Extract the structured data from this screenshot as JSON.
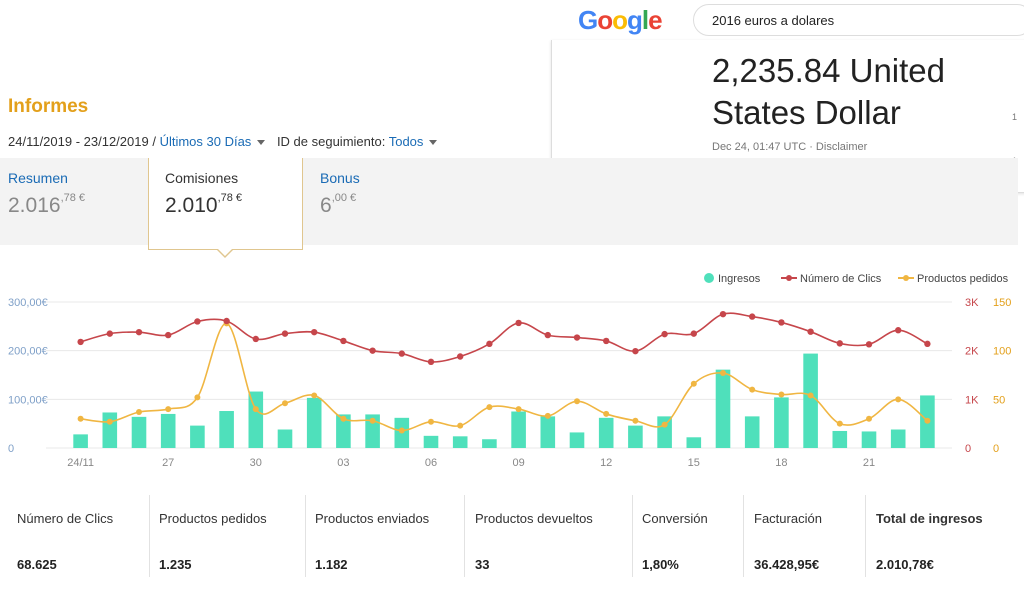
{
  "google": {
    "logo": "Google",
    "query": "2016 euros a dolares",
    "result_line1": "2,235.84 United",
    "result_line2": "States Dollar",
    "date": "Dec 24, 01:47 UTC · Disclaimer",
    "side_digit_1": "1",
    "side_digit_2": "1"
  },
  "report": {
    "title": "Informes",
    "date_range": "24/11/2019 - 23/12/2019 / ",
    "period_link": "Últimos 30 Días",
    "tracking_label": "ID de seguimiento: ",
    "tracking_value": "Todos"
  },
  "tabs": [
    {
      "label": "Resumen",
      "value_int": "2.016",
      "value_dec": ",78 €"
    },
    {
      "label": "Comisiones",
      "value_int": "2.010",
      "value_dec": ",78 €"
    },
    {
      "label": "Bonus",
      "value_int": "6",
      "value_dec": ",00 €"
    }
  ],
  "colors": {
    "ingresos": "#4fe0bb",
    "clics": "#c6464b",
    "productos": "#f0b642"
  },
  "chart_data": {
    "type": "bar+line",
    "x_tick_labels": [
      "24/11",
      "27",
      "30",
      "03",
      "06",
      "09",
      "12",
      "15",
      "18",
      "21"
    ],
    "legend": [
      "Ingresos",
      "Número de Clics",
      "Productos pedidos"
    ],
    "left_axis_labels": [
      "300,00€",
      "200,00€",
      "100,00€",
      "0"
    ],
    "mid_axis_labels": [
      "3K",
      "2K",
      "1K",
      "0"
    ],
    "right_axis_labels": [
      "150",
      "100",
      "50",
      "0"
    ],
    "ingresos": [
      28,
      73,
      64,
      70,
      46,
      76,
      116,
      38,
      103,
      69,
      69,
      62,
      25,
      24,
      18,
      75,
      65,
      32,
      62,
      46,
      65,
      22,
      161,
      65,
      104,
      194,
      35,
      34,
      38,
      108
    ],
    "clics": [
      2180,
      2350,
      2380,
      2320,
      2600,
      2610,
      2240,
      2350,
      2380,
      2200,
      2000,
      1940,
      1770,
      1880,
      2140,
      2570,
      2320,
      2270,
      2200,
      1990,
      2340,
      2350,
      2750,
      2700,
      2580,
      2390,
      2150,
      2130,
      2420,
      2140
    ],
    "productos": [
      30,
      27,
      37,
      40,
      52,
      128,
      40,
      46,
      54,
      30,
      28,
      18,
      27,
      23,
      42,
      40,
      33,
      48,
      35,
      28,
      24,
      66,
      77,
      60,
      55,
      54,
      25,
      30,
      50,
      28
    ],
    "left_axis_range": [
      0,
      300
    ],
    "mid_axis_range": [
      0,
      3000
    ],
    "right_axis_range": [
      0,
      150
    ],
    "grid": true,
    "legend_position": "top-right"
  },
  "stats": [
    {
      "label": "Número de Clics",
      "value": "68.625"
    },
    {
      "label": "Productos pedidos",
      "value": "1.235"
    },
    {
      "label": "Productos enviados",
      "value": "1.182"
    },
    {
      "label": "Productos devueltos",
      "value": "33"
    },
    {
      "label": "Conversión",
      "value": "1,80%"
    },
    {
      "label": "Facturación",
      "value": "36.428,95€"
    },
    {
      "label": "Total de ingresos",
      "value": "2.010,78€"
    }
  ]
}
